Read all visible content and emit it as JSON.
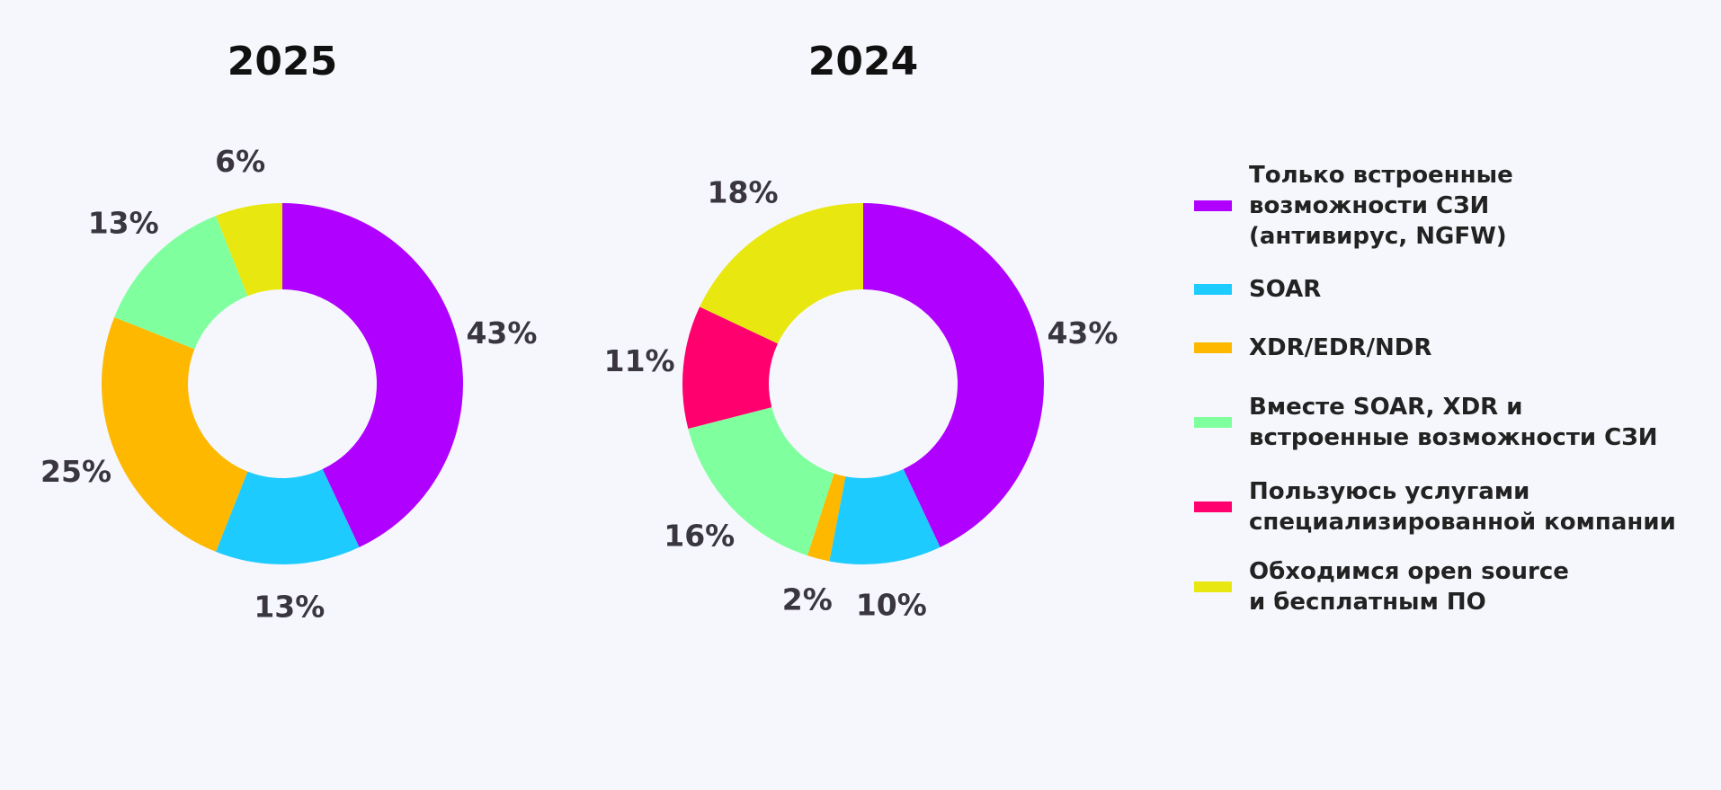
{
  "chart_data": [
    {
      "type": "pie",
      "title": "2025",
      "categories": [
        "Только встроенные\nвозможности СЗИ\n(антивирус, NGFW)",
        "SOAR",
        "XDR/EDR/NDR",
        "Вместе SOAR, XDR и\nвстроенные возможности СЗИ",
        "Обходимся open source\nи бесплатным ПО"
      ],
      "values": [
        43,
        13,
        25,
        13,
        6
      ],
      "value_labels": [
        "43%",
        "13%",
        "25%",
        "13%",
        "6%"
      ],
      "colors": [
        "#b000ff",
        "#1ecbff",
        "#ffb800",
        "#80ff9f",
        "#e8e810"
      ]
    },
    {
      "type": "pie",
      "title": "2024",
      "categories": [
        "Только встроенные\nвозможности СЗИ\n(антивирус, NGFW)",
        "SOAR",
        "XDR/EDR/NDR",
        "Вместе SOAR, XDR и\nвстроенные возможности СЗИ",
        "Пользуюсь услугами\nспециализированной компании",
        "Обходимся open source\nи бесплатным ПО"
      ],
      "values": [
        43,
        10,
        2,
        16,
        11,
        18
      ],
      "value_labels": [
        "43%",
        "10%",
        "2%",
        "16%",
        "11%",
        "18%"
      ],
      "colors": [
        "#b000ff",
        "#1ecbff",
        "#ffb800",
        "#80ff9f",
        "#ff006e",
        "#e8e810"
      ],
      "legend": true
    }
  ]
}
